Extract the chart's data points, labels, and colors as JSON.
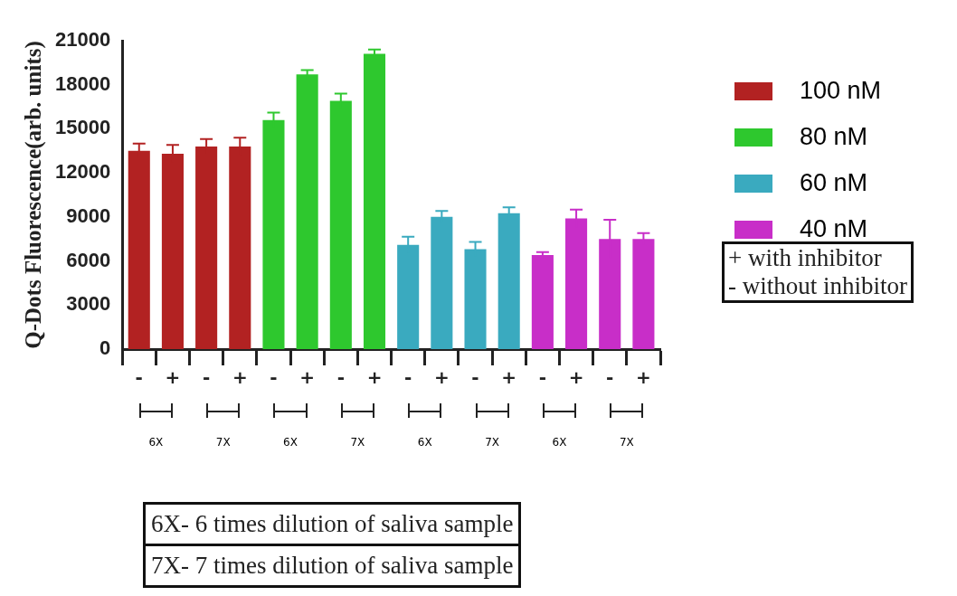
{
  "chart_data": {
    "type": "bar",
    "ylabel": "Q-Dots Fluorescence(arb. units)",
    "categories": [
      "-",
      "+",
      "-",
      "+",
      "-",
      "+",
      "-",
      "+",
      "-",
      "+",
      "-",
      "+",
      "-",
      "+",
      "-",
      "+"
    ],
    "series": [
      {
        "name": "100 nM",
        "color": "#b22222",
        "values": [
          13500,
          13300,
          13800,
          13800,
          null,
          null,
          null,
          null,
          null,
          null,
          null,
          null,
          null,
          null,
          null,
          null
        ],
        "errors": [
          500,
          600,
          500,
          600,
          null,
          null,
          null,
          null,
          null,
          null,
          null,
          null,
          null,
          null,
          null,
          null
        ]
      },
      {
        "name": "80 nM",
        "color": "#2ec82e",
        "values": [
          null,
          null,
          null,
          null,
          15600,
          18700,
          16900,
          20100,
          null,
          null,
          null,
          null,
          null,
          null,
          null,
          null
        ],
        "errors": [
          null,
          null,
          null,
          null,
          500,
          300,
          500,
          300,
          null,
          null,
          null,
          null,
          null,
          null,
          null,
          null
        ]
      },
      {
        "name": "60 nM",
        "color": "#3aaabf",
        "values": [
          null,
          null,
          null,
          null,
          null,
          null,
          null,
          null,
          7100,
          9000,
          6800,
          9250,
          null,
          null,
          null,
          null
        ],
        "errors": [
          null,
          null,
          null,
          null,
          null,
          null,
          null,
          null,
          550,
          400,
          500,
          400,
          null,
          null,
          null,
          null
        ]
      },
      {
        "name": "40 nM",
        "color": "#c82ec8",
        "values": [
          null,
          null,
          null,
          null,
          null,
          null,
          null,
          null,
          null,
          null,
          null,
          null,
          6400,
          8900,
          7500,
          7500
        ],
        "errors": [
          null,
          null,
          null,
          null,
          null,
          null,
          null,
          null,
          null,
          null,
          null,
          null,
          200,
          600,
          1300,
          400
        ]
      }
    ],
    "ylim": [
      0,
      21000
    ],
    "yticks": [
      0,
      3000,
      6000,
      9000,
      12000,
      15000,
      18000,
      21000
    ],
    "grid": false,
    "legend": "top right",
    "annotations": [
      "6X",
      "7X",
      "6X",
      "7X",
      "6X",
      "7X",
      "6X",
      "7X",
      "+ with inhibitor",
      "- without inhibitor",
      "6X- 6 times dilution of saliva sample",
      "7X- 7 times dilution of saliva sample"
    ]
  }
}
